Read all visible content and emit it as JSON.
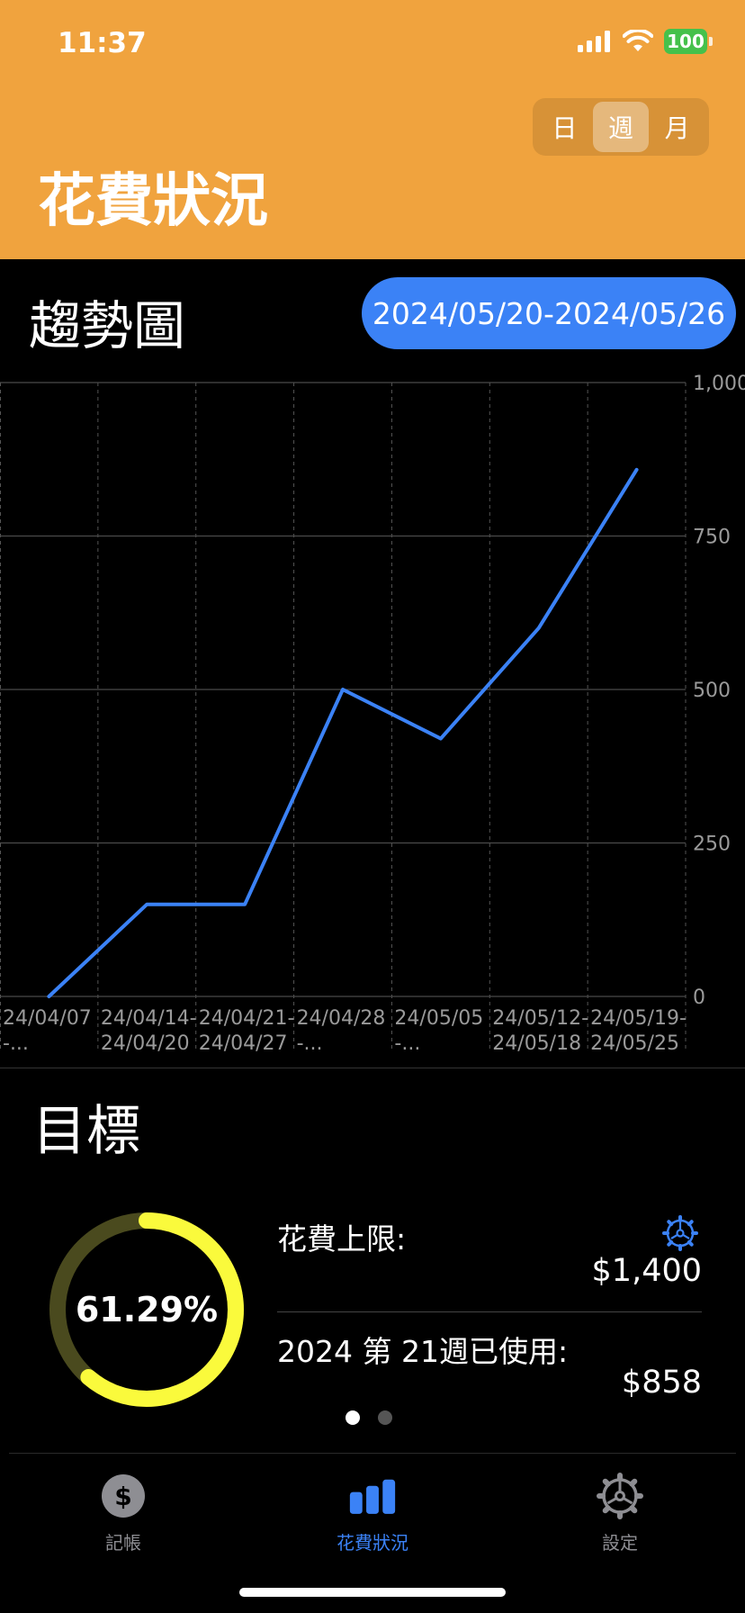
{
  "status": {
    "time": "11:37",
    "battery": "100"
  },
  "header": {
    "title": "花費狀況",
    "segments": [
      "日",
      "週",
      "月"
    ],
    "selected_segment": "週"
  },
  "trend": {
    "title": "趨勢圖",
    "date_range": "2024/05/20-2024/05/26"
  },
  "chart_data": {
    "type": "line",
    "x": [
      [
        "24/04/07",
        "-..."
      ],
      [
        "24/04/14-",
        "24/04/20"
      ],
      [
        "24/04/21-",
        "24/04/27"
      ],
      [
        "24/04/28",
        "-..."
      ],
      [
        "24/05/05",
        "-..."
      ],
      [
        "24/05/12-",
        "24/05/18"
      ],
      [
        "24/05/19-",
        "24/05/25"
      ]
    ],
    "values": [
      0,
      150,
      150,
      500,
      420,
      600,
      858
    ],
    "ylim": [
      0,
      1000
    ],
    "yticks": [
      "0",
      "250",
      "500",
      "750",
      "1,000"
    ],
    "y_axis_side": "right",
    "line_color": "#3B82F6",
    "grid": true
  },
  "goal": {
    "title": "目標",
    "percent_text": "61.29%",
    "percent": 61.29,
    "limit_label": "花費上限:",
    "limit_value": "$1,400",
    "used_label": "2024 第 21週已使用:",
    "used_value": "$858",
    "ring_color": "#FAFA3C",
    "ring_track_color": "#4A4A1E",
    "page_count": 2,
    "current_page": 1
  },
  "tabs": [
    {
      "label": "記帳",
      "icon": "dollar-circle-icon"
    },
    {
      "label": "花費狀況",
      "icon": "bar-chart-icon"
    },
    {
      "label": "設定",
      "icon": "gear-icon"
    }
  ],
  "active_tab": "花費狀況"
}
